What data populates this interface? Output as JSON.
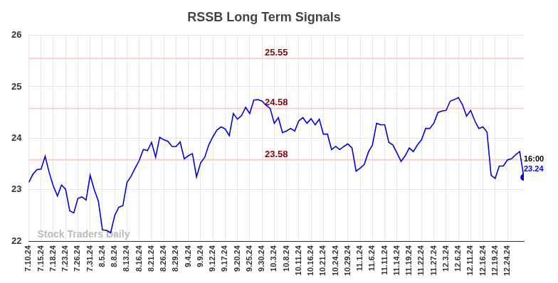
{
  "chart_data": {
    "type": "line",
    "title": "RSSB Long Term Signals",
    "categories": [
      "7.10.24",
      null,
      null,
      "7.15.24",
      null,
      null,
      "7.18.24",
      null,
      null,
      "7.23.24",
      null,
      null,
      "7.26.24",
      null,
      null,
      "7.31.24",
      null,
      null,
      "8.5.24",
      null,
      null,
      "8.8.24",
      null,
      null,
      "8.13.24",
      null,
      null,
      "8.16.24",
      null,
      null,
      "8.21.24",
      null,
      null,
      "8.26.24",
      null,
      null,
      "8.29.24",
      null,
      null,
      "9.4.24",
      null,
      null,
      "9.9.24",
      null,
      null,
      "9.12.24",
      null,
      null,
      "9.17.24",
      null,
      null,
      "9.20.24",
      null,
      null,
      "9.25.24",
      null,
      null,
      "9.30.24",
      null,
      null,
      "10.3.24",
      null,
      null,
      "10.8.24",
      null,
      null,
      "10.11.24",
      null,
      null,
      "10.16.24",
      null,
      null,
      "10.21.24",
      null,
      null,
      "10.24.24",
      null,
      null,
      "10.29.24",
      null,
      null,
      "11.1.24",
      null,
      null,
      "11.6.24",
      null,
      null,
      "11.11.24",
      null,
      null,
      "11.14.24",
      null,
      null,
      "11.19.24",
      null,
      null,
      "11.22.24",
      null,
      null,
      "11.27.24",
      null,
      null,
      "12.3.24",
      null,
      null,
      "12.6.24",
      null,
      null,
      "12.11.24",
      null,
      null,
      "12.16.24",
      null,
      null,
      "12.19.24",
      null,
      null,
      "12.24.24",
      null,
      null,
      null,
      null
    ],
    "values": [
      23.14,
      23.3,
      23.39,
      23.4,
      23.65,
      23.33,
      23.07,
      22.88,
      23.09,
      23.01,
      22.59,
      22.55,
      22.83,
      22.86,
      22.8,
      23.28,
      23.0,
      22.78,
      22.22,
      22.21,
      22.16,
      22.5,
      22.66,
      22.69,
      23.14,
      23.26,
      23.42,
      23.57,
      23.78,
      23.76,
      23.92,
      23.63,
      24.02,
      23.97,
      23.94,
      23.84,
      23.84,
      23.93,
      23.6,
      23.66,
      23.7,
      23.25,
      23.52,
      23.63,
      23.87,
      24.03,
      24.16,
      24.22,
      24.18,
      24.05,
      24.48,
      24.37,
      24.44,
      24.6,
      24.48,
      24.74,
      24.75,
      24.72,
      24.64,
      24.58,
      24.29,
      24.4,
      24.11,
      24.14,
      24.19,
      24.14,
      24.34,
      24.4,
      24.29,
      24.38,
      24.26,
      24.37,
      24.08,
      24.08,
      23.78,
      23.84,
      23.78,
      23.84,
      23.89,
      23.81,
      23.36,
      23.42,
      23.49,
      23.73,
      23.87,
      24.29,
      24.26,
      24.26,
      23.92,
      23.87,
      23.71,
      23.55,
      23.66,
      23.81,
      23.74,
      23.87,
      23.97,
      24.19,
      24.19,
      24.29,
      24.5,
      24.53,
      24.54,
      24.72,
      24.75,
      24.79,
      24.65,
      24.43,
      24.54,
      24.34,
      24.19,
      24.22,
      24.12,
      23.28,
      23.22,
      23.46,
      23.46,
      23.58,
      23.6,
      23.68,
      23.74,
      23.24
    ],
    "color": "#0000dd",
    "ylim": [
      22,
      26
    ],
    "yticks": [
      22,
      23,
      24,
      25,
      26
    ],
    "grid": true,
    "reference_lines": [
      {
        "value": 25.55,
        "color": "#ffcccc"
      },
      {
        "value": 24.58,
        "color": "#ffcccc"
      },
      {
        "value": 23.58,
        "color": "#ffcccc"
      }
    ],
    "last_point_label": {
      "time": "16:00",
      "value": 23.24
    },
    "watermark": "Stock Traders Daily"
  }
}
